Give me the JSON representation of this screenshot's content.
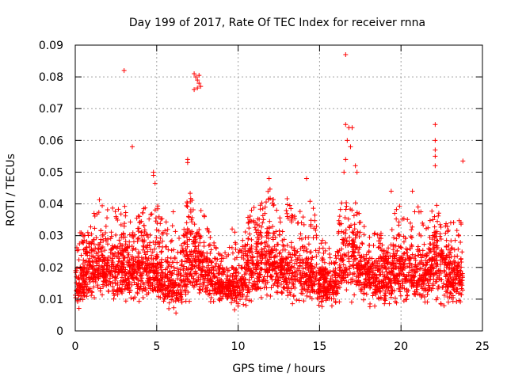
{
  "chart_data": {
    "type": "scatter",
    "title": "Day 199 of 2017, Rate Of TEC Index for receiver rnna",
    "xlabel": "GPS time / hours",
    "ylabel": "ROTI / TECUs",
    "xlim": [
      0,
      25
    ],
    "ylim": [
      0,
      0.09
    ],
    "x_ticks": [
      "0",
      "5",
      "10",
      "15",
      "20",
      "25"
    ],
    "y_ticks": [
      "0",
      "0.01",
      "0.02",
      "0.03",
      "0.04",
      "0.05",
      "0.06",
      "0.07",
      "0.08",
      "0.09"
    ],
    "grid": true,
    "marker": "+",
    "series": [
      {
        "color": "#ff0000",
        "envelope": {
          "x": [
            0,
            0.5,
            1,
            1.5,
            2,
            2.5,
            3,
            3.5,
            4,
            4.5,
            5,
            5.5,
            6,
            6.5,
            7,
            7.5,
            8,
            8.5,
            9,
            9.5,
            10,
            10.5,
            11,
            11.5,
            12,
            12.5,
            13,
            13.5,
            14,
            14.5,
            15,
            15.5,
            16,
            16.5,
            17,
            17.5,
            18,
            18.5,
            19,
            19.5,
            20,
            20.5,
            21,
            21.5,
            22,
            22.5,
            23,
            23.5
          ],
          "low": [
            0.006,
            0.007,
            0.008,
            0.008,
            0.008,
            0.007,
            0.006,
            0.007,
            0.007,
            0.007,
            0.006,
            0.005,
            0.004,
            0.005,
            0.006,
            0.007,
            0.008,
            0.008,
            0.007,
            0.007,
            0.005,
            0.005,
            0.007,
            0.007,
            0.008,
            0.008,
            0.007,
            0.007,
            0.007,
            0.007,
            0.006,
            0.006,
            0.007,
            0.007,
            0.007,
            0.008,
            0.007,
            0.005,
            0.003,
            0.005,
            0.006,
            0.007,
            0.007,
            0.007,
            0.007,
            0.006,
            0.005,
            0.005
          ],
          "high": [
            0.036,
            0.03,
            0.035,
            0.042,
            0.04,
            0.038,
            0.04,
            0.036,
            0.04,
            0.038,
            0.04,
            0.035,
            0.038,
            0.03,
            0.045,
            0.04,
            0.036,
            0.028,
            0.025,
            0.03,
            0.038,
            0.034,
            0.043,
            0.04,
            0.047,
            0.037,
            0.042,
            0.037,
            0.04,
            0.042,
            0.03,
            0.027,
            0.03,
            0.045,
            0.044,
            0.036,
            0.03,
            0.034,
            0.028,
            0.038,
            0.04,
            0.034,
            0.04,
            0.035,
            0.042,
            0.038,
            0.035,
            0.035
          ],
          "typical": [
            0.014,
            0.016,
            0.019,
            0.02,
            0.019,
            0.018,
            0.019,
            0.018,
            0.019,
            0.018,
            0.017,
            0.015,
            0.014,
            0.015,
            0.02,
            0.021,
            0.018,
            0.015,
            0.014,
            0.013,
            0.014,
            0.017,
            0.02,
            0.022,
            0.021,
            0.019,
            0.018,
            0.018,
            0.018,
            0.016,
            0.014,
            0.014,
            0.015,
            0.02,
            0.022,
            0.019,
            0.016,
            0.016,
            0.015,
            0.016,
            0.018,
            0.018,
            0.017,
            0.016,
            0.02,
            0.02,
            0.016,
            0.015
          ]
        },
        "notable_points": [
          {
            "x": 3.0,
            "y": 0.082
          },
          {
            "x": 3.5,
            "y": 0.058
          },
          {
            "x": 7.3,
            "y": 0.081
          },
          {
            "x": 7.4,
            "y": 0.08
          },
          {
            "x": 7.5,
            "y": 0.079
          },
          {
            "x": 7.6,
            "y": 0.078
          },
          {
            "x": 7.7,
            "y": 0.077
          },
          {
            "x": 7.3,
            "y": 0.076
          },
          {
            "x": 7.5,
            "y": 0.0765
          },
          {
            "x": 7.6,
            "y": 0.0805
          },
          {
            "x": 16.6,
            "y": 0.087
          },
          {
            "x": 16.6,
            "y": 0.065
          },
          {
            "x": 16.8,
            "y": 0.064
          },
          {
            "x": 17.0,
            "y": 0.064
          },
          {
            "x": 16.7,
            "y": 0.06
          },
          {
            "x": 16.9,
            "y": 0.058
          },
          {
            "x": 22.1,
            "y": 0.065
          },
          {
            "x": 22.1,
            "y": 0.06
          },
          {
            "x": 22.1,
            "y": 0.057
          },
          {
            "x": 22.1,
            "y": 0.055
          },
          {
            "x": 22.1,
            "y": 0.052
          },
          {
            "x": 23.8,
            "y": 0.0535
          },
          {
            "x": 6.9,
            "y": 0.054
          },
          {
            "x": 6.9,
            "y": 0.053
          },
          {
            "x": 4.8,
            "y": 0.05
          },
          {
            "x": 4.8,
            "y": 0.049
          },
          {
            "x": 14.2,
            "y": 0.048
          },
          {
            "x": 11.9,
            "y": 0.048
          },
          {
            "x": 17.2,
            "y": 0.052
          },
          {
            "x": 17.3,
            "y": 0.05
          },
          {
            "x": 16.6,
            "y": 0.054
          },
          {
            "x": 16.5,
            "y": 0.05
          },
          {
            "x": 19.4,
            "y": 0.044
          },
          {
            "x": 20.7,
            "y": 0.044
          },
          {
            "x": 4.9,
            "y": 0.0465
          }
        ]
      }
    ]
  }
}
